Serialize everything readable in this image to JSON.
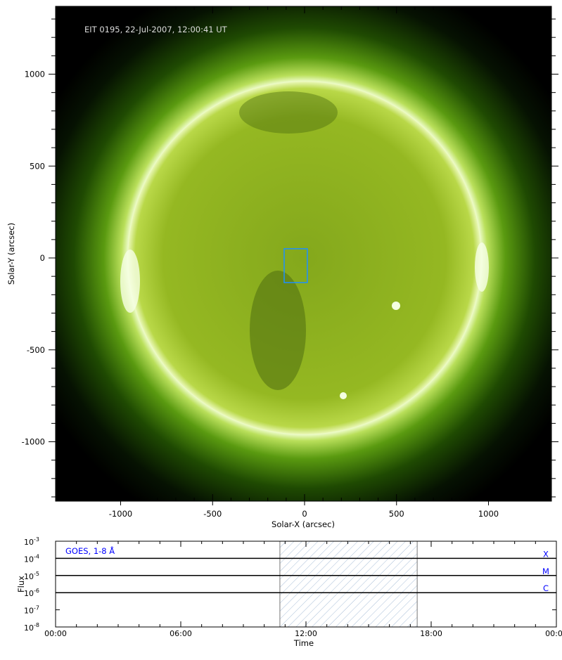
{
  "chart_data": [
    {
      "type": "image",
      "title": "EIT 0195, 22-Jul-2007, 12:00:41 UT",
      "xlabel": "Solar-X (arcsec)",
      "ylabel": "Solar-Y (arcsec)",
      "xlim": [
        -1350,
        1350
      ],
      "ylim": [
        -1330,
        1370
      ],
      "xticks": [
        -1000,
        -500,
        0,
        500,
        1000
      ],
      "yticks": [
        1000,
        500,
        0,
        -500,
        -1000
      ],
      "xtick_labels": [
        "-1000",
        "-500",
        "0",
        "500",
        "1000"
      ],
      "ytick_labels": [
        "1000",
        "500",
        "0",
        "-500",
        "-1000"
      ],
      "solar_radius_arcsec": 960,
      "colormap": "EIT 195 green",
      "roi_box": {
        "x": [
          -111,
          15
        ],
        "y": [
          -134,
          50
        ],
        "color": "#1e90ff"
      }
    },
    {
      "type": "line",
      "title": "GOES, 1-8 Å",
      "xlabel": "Time",
      "ylabel": "Flux",
      "xlim_hours": [
        0,
        24
      ],
      "xtick_labels": [
        "00:00",
        "06:00",
        "12:00",
        "18:00",
        "00:00"
      ],
      "ylim": [
        1e-08,
        0.001
      ],
      "yscale": "log",
      "ytick_labels": [
        {
          "base": "10",
          "exp": "-3"
        },
        {
          "base": "10",
          "exp": "-4"
        },
        {
          "base": "10",
          "exp": "-5"
        },
        {
          "base": "10",
          "exp": "-6"
        },
        {
          "base": "10",
          "exp": "-7"
        },
        {
          "base": "10",
          "exp": "-8"
        }
      ],
      "flare_levels": [
        {
          "label": "X",
          "value": 0.0001
        },
        {
          "label": "M",
          "value": 1e-05
        },
        {
          "label": "C",
          "value": 1e-06
        }
      ],
      "highlight_hours": [
        10.75,
        17.33
      ],
      "label_color": "#0000ff",
      "series": []
    }
  ]
}
